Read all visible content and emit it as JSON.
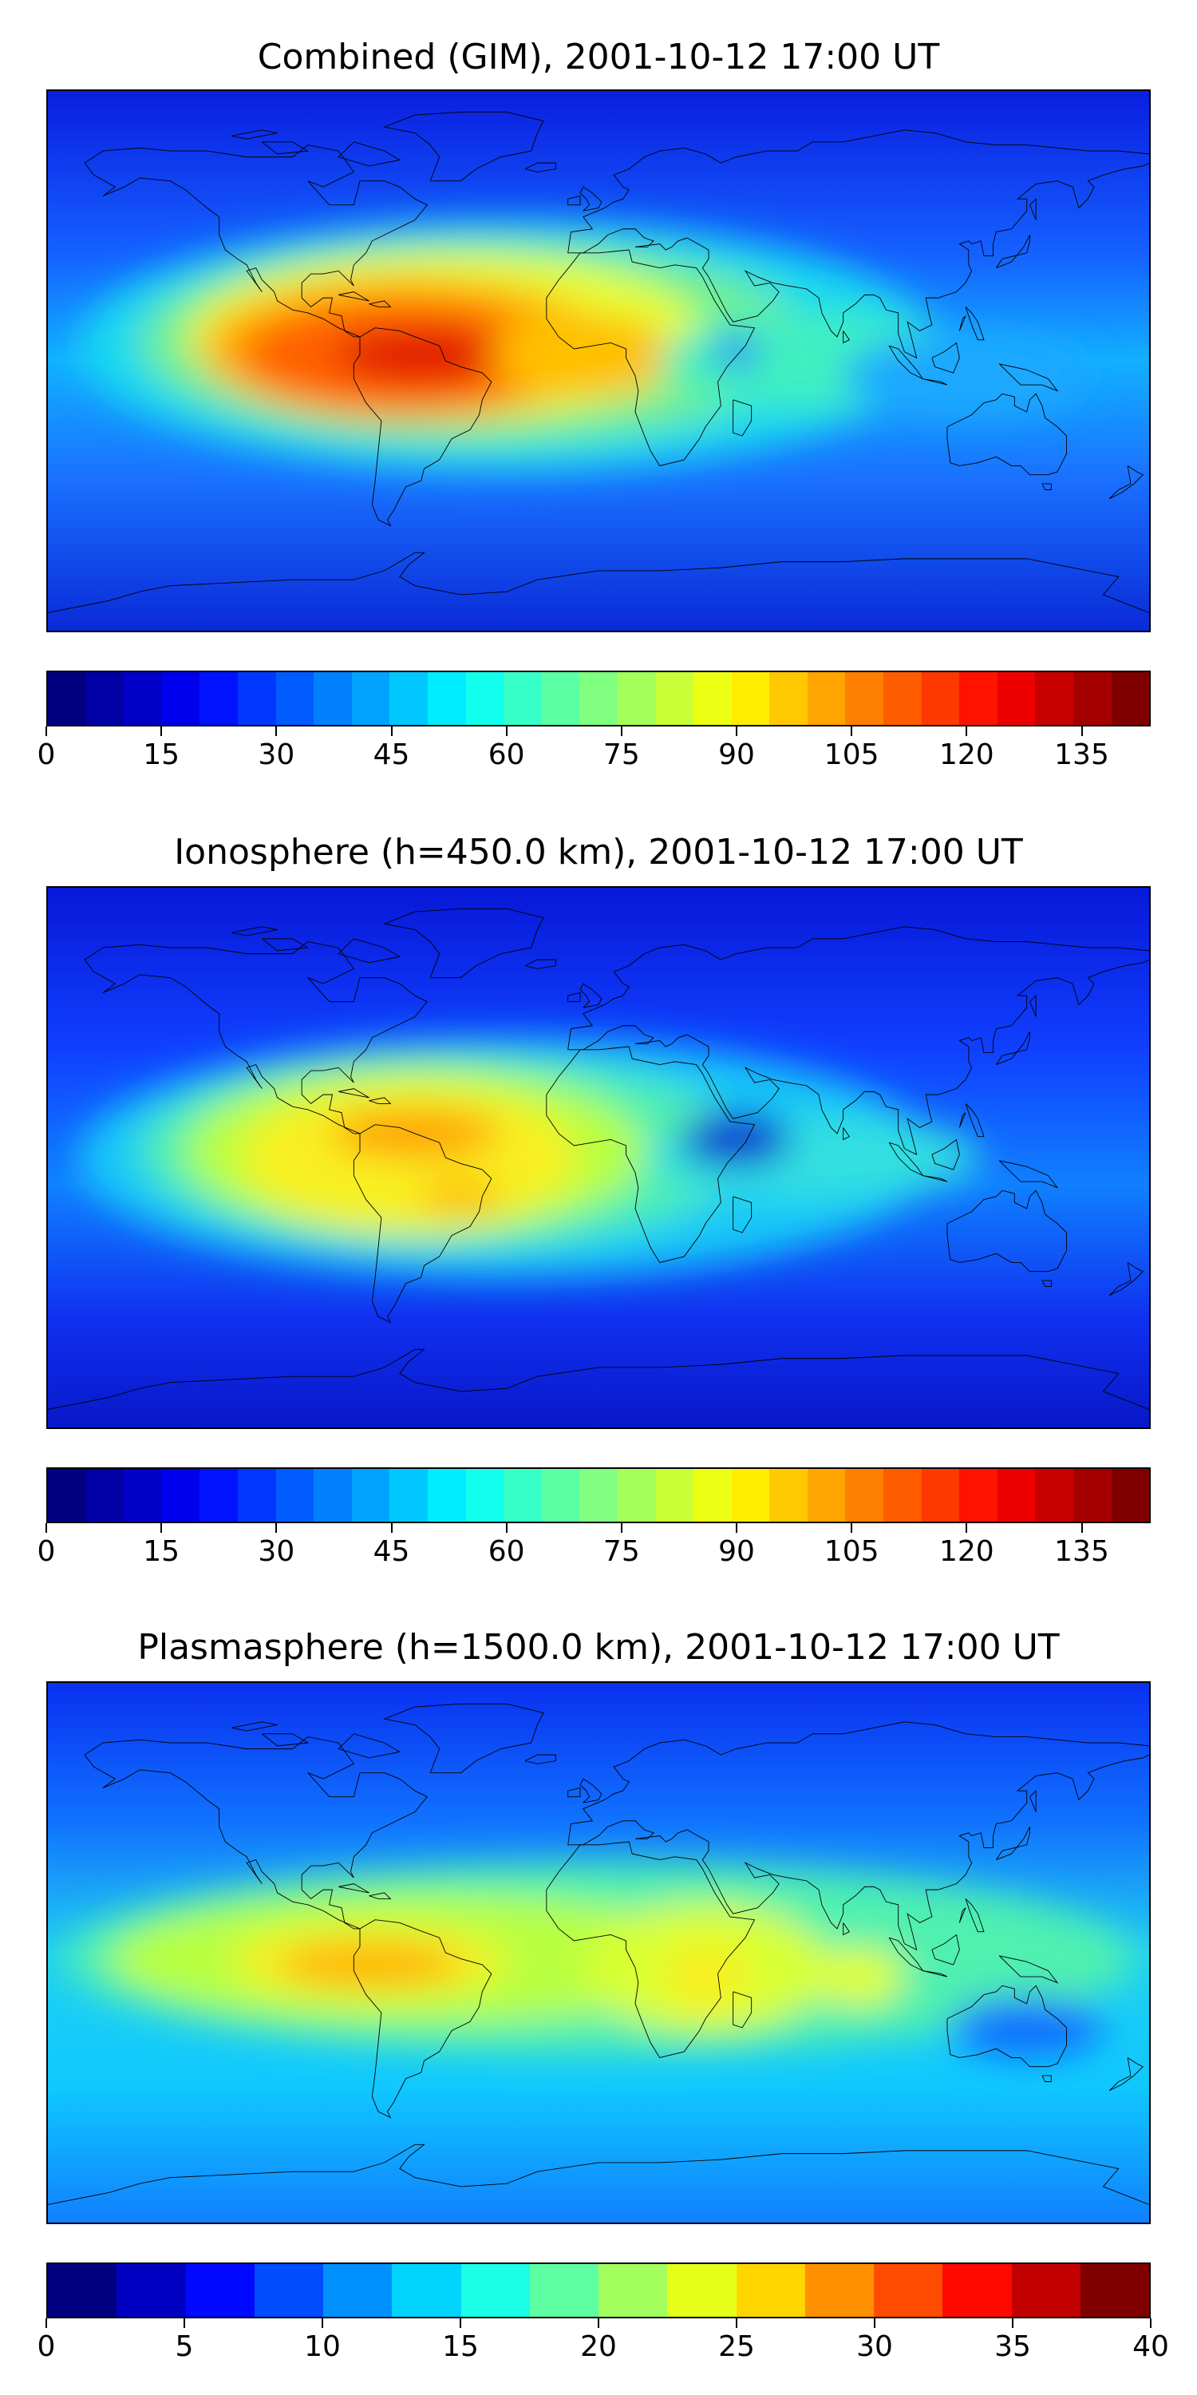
{
  "panels": [
    {
      "title": "Combined (GIM), 2001-10-12 17:00 UT",
      "colorbar": {
        "min": 0,
        "max": 144,
        "levels": 29,
        "ticks": [
          "0",
          "15",
          "30",
          "45",
          "60",
          "75",
          "90",
          "105",
          "120",
          "135"
        ]
      },
      "hotspots": [
        {
          "lon": -55,
          "lat": 2,
          "value": 135
        },
        {
          "lon": -20,
          "lat": -5,
          "value": 110
        },
        {
          "lon": 20,
          "lat": 0,
          "value": 90
        }
      ]
    },
    {
      "title": "Ionosphere  (h=450.0 km), 2001-10-12 17:00 UT",
      "colorbar": {
        "min": 0,
        "max": 144,
        "levels": 29,
        "ticks": [
          "0",
          "15",
          "30",
          "45",
          "60",
          "75",
          "90",
          "105",
          "120",
          "135"
        ]
      },
      "hotspots": [
        {
          "lon": -60,
          "lat": 5,
          "value": 110
        },
        {
          "lon": -45,
          "lat": -15,
          "value": 105
        },
        {
          "lon": 45,
          "lat": 8,
          "value": 25
        }
      ]
    },
    {
      "title": "Plasmasphere (h=1500.0 km), 2001-10-12 17:00 UT",
      "colorbar": {
        "min": 0,
        "max": 40,
        "levels": 16,
        "ticks": [
          "0",
          "5",
          "10",
          "15",
          "20",
          "25",
          "30",
          "35",
          "40"
        ]
      },
      "hotspots": [
        {
          "lon": -75,
          "lat": -5,
          "value": 30
        },
        {
          "lon": 35,
          "lat": -10,
          "value": 27
        },
        {
          "lon": 75,
          "lat": -10,
          "value": 25
        }
      ]
    }
  ]
}
